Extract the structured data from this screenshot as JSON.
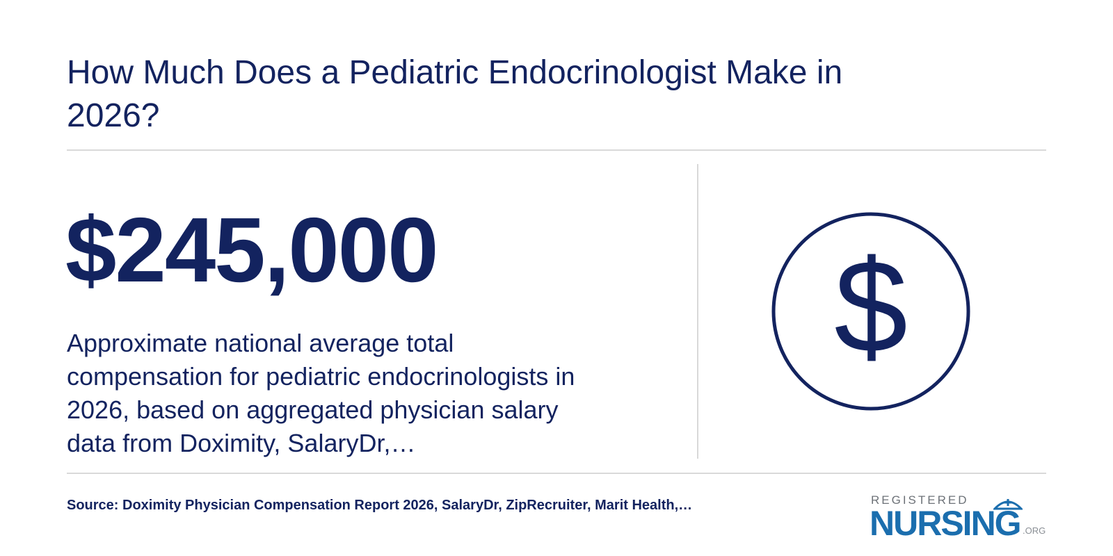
{
  "header": {
    "title": "How Much Does a Pediatric Endocrinologist Make in 2026?"
  },
  "stat": {
    "value": "$245,000",
    "description": "Approximate national average total compensation for pediatric endocrinologists in 2026, based on aggregated physician salary data from Doximity, SalaryDr,…"
  },
  "icon": {
    "symbol": "$"
  },
  "footer": {
    "source": "Source: Doximity Physician Compensation Report 2026, SalaryDr, ZipRecruiter, Marit Health,…"
  },
  "logo": {
    "top": "REGISTERED",
    "main": "NURSING",
    "suffix": ".ORG"
  }
}
